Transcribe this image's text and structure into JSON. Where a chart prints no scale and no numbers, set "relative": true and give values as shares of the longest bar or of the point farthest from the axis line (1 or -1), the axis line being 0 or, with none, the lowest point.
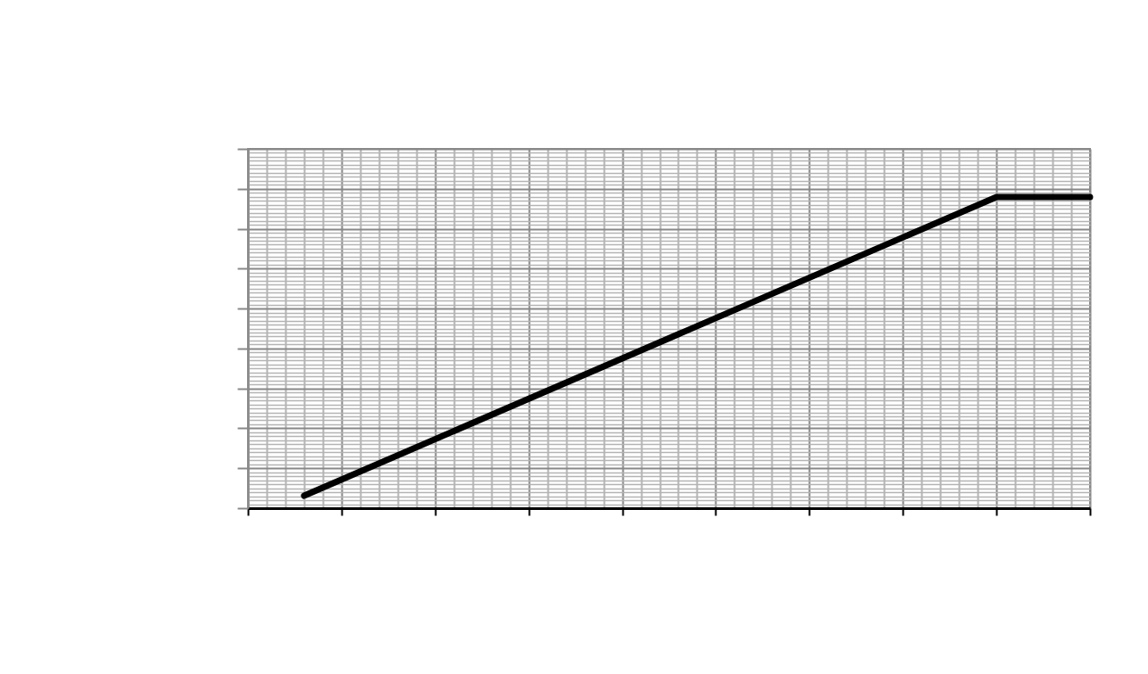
{
  "chart_data": {
    "type": "line",
    "relative": true,
    "grid": true,
    "line_style": "solid",
    "categories": [
      null,
      null,
      null,
      null,
      null,
      null,
      null,
      null,
      null,
      null,
      null,
      null,
      null,
      null,
      null,
      null,
      null,
      null,
      null,
      null,
      null,
      null,
      null,
      null,
      null,
      null,
      null,
      null,
      null,
      null,
      null,
      null,
      null,
      null,
      null,
      null,
      null,
      null,
      null,
      null,
      null,
      null,
      null,
      null,
      null,
      null
    ],
    "series": [
      {
        "color": "#000000",
        "values": [
          null,
          null,
          null,
          0.04,
          null,
          null,
          null,
          null,
          null,
          null,
          null,
          null,
          null,
          null,
          null,
          null,
          null,
          null,
          null,
          null,
          null,
          null,
          null,
          null,
          null,
          null,
          null,
          null,
          null,
          null,
          null,
          null,
          null,
          null,
          null,
          null,
          null,
          null,
          null,
          null,
          1,
          null,
          null,
          null,
          null,
          1
        ]
      }
    ]
  }
}
